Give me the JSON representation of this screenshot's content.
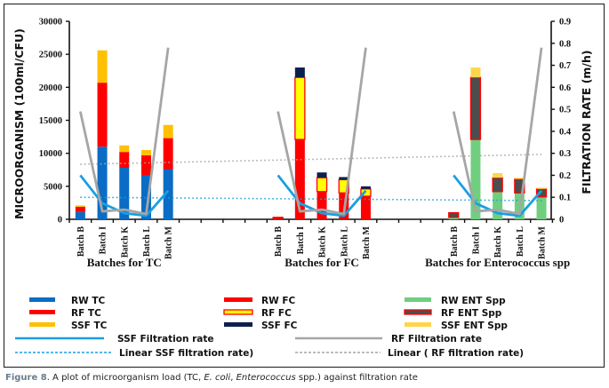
{
  "chart_data": {
    "type": "bar",
    "subtype": "stacked-bar-with-secondary-lines",
    "y_left": {
      "label": "MICROORGANISM (100ml/CFU)",
      "lim": [
        0,
        30000
      ],
      "ticks": [
        0,
        5000,
        10000,
        15000,
        20000,
        25000,
        30000
      ]
    },
    "y_right": {
      "label": "FILTRATION RATE (m/h)",
      "lim": [
        0,
        0.9
      ],
      "ticks": [
        "0",
        "0.1",
        "0.2",
        "0.3",
        "0.4",
        "0.5",
        "0.6",
        "0.7",
        "0.8",
        "0.9"
      ]
    },
    "grid": false,
    "batches": [
      "Batch B",
      "Batch I",
      "Batch K",
      "Batch L",
      "Batch M"
    ],
    "groups": [
      {
        "label": "Batches for TC",
        "series": [
          {
            "name": "RW TC",
            "color": "#0a6cc4",
            "values": [
              1100,
              11000,
              7800,
              6600,
              7600
            ]
          },
          {
            "name": "RF TC",
            "color": "#ff0000",
            "values": [
              800,
              9700,
              2400,
              3100,
              4700
            ]
          },
          {
            "name": "SSF TC",
            "color": "#ffc000",
            "values": [
              200,
              4900,
              1000,
              800,
              2000
            ]
          }
        ]
      },
      {
        "label": "Batches for FC",
        "series": [
          {
            "name": "RW FC",
            "color": "#ff0000",
            "values": [
              150,
              12100,
              4200,
              4000,
              3500
            ]
          },
          {
            "name": "RF FC",
            "color": "#ffff00",
            "border": "#ff0000",
            "values": [
              150,
              9400,
              2100,
              2000,
              1100
            ]
          },
          {
            "name": "SSF FC",
            "color": "#0d1f4d",
            "values": [
              0,
              1500,
              800,
              400,
              400
            ]
          }
        ]
      },
      {
        "label": "Batches for Enterococcus spp",
        "series": [
          {
            "name": "RW ENT Spp",
            "color": "#6fcf7f",
            "values": [
              300,
              12100,
              4200,
              4000,
              3400
            ]
          },
          {
            "name": "RF ENT Spp",
            "color": "#4d4d4d",
            "border": "#ff0000",
            "values": [
              700,
              9400,
              2100,
              2100,
              1200
            ]
          },
          {
            "name": "SSF ENT Spp",
            "color": "#ffd54a",
            "values": [
              0,
              1500,
              700,
              200,
              200
            ]
          }
        ]
      }
    ],
    "lines": [
      {
        "name": "SSF Filtration rate",
        "color": "#1a9fdf",
        "axis": "right",
        "values": [
          0.2,
          0.073,
          0.028,
          0.016,
          0.13
        ]
      },
      {
        "name": "RF Filtration rate",
        "color": "#a6a6a6",
        "axis": "right",
        "values": [
          0.49,
          0.036,
          0.044,
          0.024,
          0.78
        ]
      }
    ],
    "trendlines": [
      {
        "name": "Linear  SSF filtration rate)",
        "color": "#1a9fdf",
        "style": "dotted",
        "start": 0.1,
        "end": 0.085
      },
      {
        "name": "Linear ( RF filtration rate)",
        "color": "#a6a6a6",
        "style": "dotted",
        "start": 0.25,
        "end": 0.295
      }
    ],
    "legend_position": "bottom"
  },
  "caption": {
    "figure": "Figure 8",
    "text_1": ". A plot of microorganism load (TC, ",
    "italic_1": "E. coli",
    "text_2": ", ",
    "italic_2": "Enterococcus",
    "text_3": " spp.) against filtration rate"
  }
}
